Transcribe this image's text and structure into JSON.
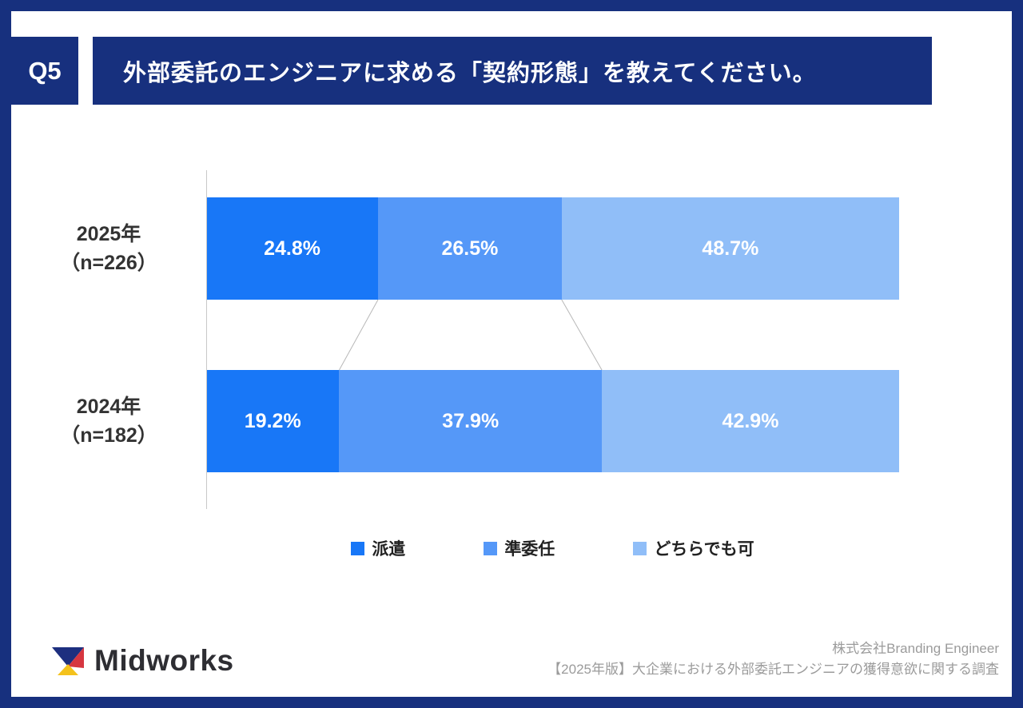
{
  "page": {
    "question_badge": "Q5",
    "question_title": "外部委託のエンジニアに求める「契約形態」を教えてください。",
    "frame_color": "#17307e"
  },
  "chart_data": {
    "type": "bar",
    "orientation": "horizontal-stacked",
    "title": "外部委託のエンジニアに求める「契約形態」を教えてください。",
    "value_unit": "%",
    "xlim": [
      0,
      100
    ],
    "grid": false,
    "legend_position": "bottom",
    "categories": [
      {
        "label": "2025年",
        "sub": "（n=226）"
      },
      {
        "label": "2024年",
        "sub": "（n=182）"
      }
    ],
    "series": [
      {
        "name": "派遣",
        "color": "#1877f7",
        "values": [
          24.8,
          19.2
        ]
      },
      {
        "name": "準委任",
        "color": "#5598f8",
        "values": [
          26.5,
          37.9
        ]
      },
      {
        "name": "どちらでも可",
        "color": "#90bef8",
        "values": [
          48.7,
          42.9
        ]
      }
    ],
    "connector_color": "#b8b8b8",
    "axis_line_color": "#c9c9c9"
  },
  "footer": {
    "logo_text": "Midworks",
    "logo_colors": {
      "navy": "#1d2f7f",
      "red": "#d63640",
      "yellow": "#f4c21c"
    },
    "credit_line1": "株式会社Branding Engineer",
    "credit_line2": "【2025年版】大企業における外部委託エンジニアの獲得意欲に関する調査"
  }
}
